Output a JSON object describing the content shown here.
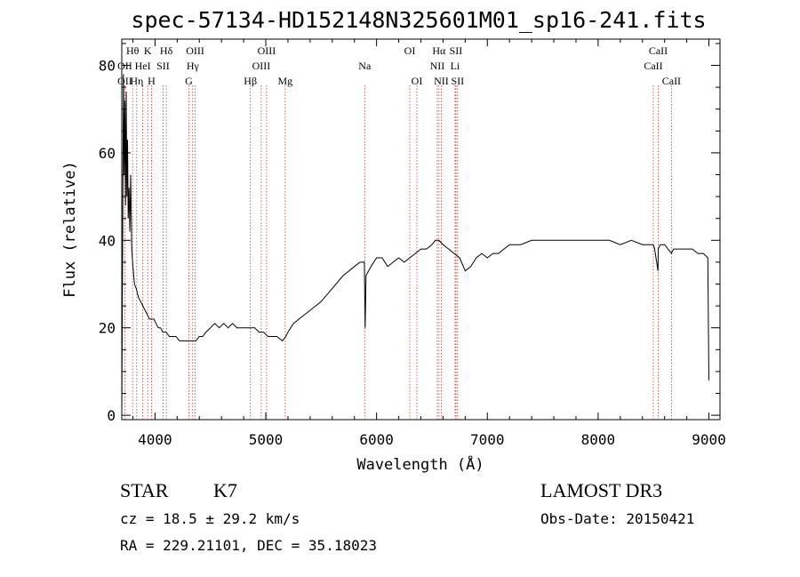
{
  "chart_data": {
    "type": "line",
    "title": "spec-57134-HD152148N325601M01_sp16-241.fits",
    "xlabel": "Wavelength (Å)",
    "ylabel": "Flux (relative)",
    "xlim": [
      3700,
      9100
    ],
    "ylim": [
      -1,
      86
    ],
    "x_ticks": [
      4000,
      5000,
      6000,
      7000,
      8000,
      9000
    ],
    "y_ticks": [
      0,
      20,
      40,
      60,
      80
    ],
    "series": [
      {
        "x": [
          3700,
          3715,
          3722,
          3728,
          3734,
          3740,
          3746,
          3752,
          3758,
          3765,
          3772,
          3780,
          3790,
          3800,
          3815,
          3830,
          3850,
          3870,
          3890,
          3910,
          3930,
          3950,
          3970,
          3990,
          4010,
          4030,
          4050,
          4070,
          4100,
          4130,
          4160,
          4190,
          4220,
          4250,
          4280,
          4300,
          4320,
          4340,
          4370,
          4400,
          4430,
          4460,
          4500,
          4540,
          4580,
          4620,
          4660,
          4700,
          4740,
          4780,
          4820,
          4860,
          4900,
          4940,
          4980,
          5020,
          5060,
          5100,
          5150,
          5180,
          5200,
          5250,
          5300,
          5400,
          5500,
          5600,
          5700,
          5800,
          5850,
          5890,
          5897,
          5905,
          5950,
          6000,
          6050,
          6100,
          6150,
          6200,
          6250,
          6300,
          6350,
          6400,
          6450,
          6500,
          6530,
          6563,
          6600,
          6650,
          6700,
          6750,
          6800,
          6850,
          6900,
          6950,
          7000,
          7050,
          7100,
          7150,
          7200,
          7300,
          7400,
          7500,
          7600,
          7700,
          7800,
          7900,
          8000,
          8100,
          8200,
          8300,
          8400,
          8498,
          8510,
          8540,
          8542,
          8560,
          8600,
          8662,
          8680,
          8700,
          8750,
          8800,
          8850,
          8900,
          8950,
          8990,
          9000
        ],
        "y": [
          0,
          78,
          55,
          72,
          48,
          74,
          50,
          63,
          45,
          52,
          42,
          55,
          38,
          34,
          30,
          29,
          27,
          26,
          25,
          24,
          23,
          22,
          22,
          22,
          21,
          20,
          20,
          19,
          19,
          18,
          18,
          18,
          17,
          17,
          17,
          17,
          17,
          17,
          17,
          18,
          18,
          19,
          20,
          21,
          20,
          21,
          20,
          21,
          20,
          20,
          20,
          20,
          20,
          19,
          19,
          18,
          18,
          18,
          17,
          18,
          19,
          21,
          22,
          24,
          26,
          29,
          32,
          34,
          35,
          35,
          20,
          32,
          34,
          36,
          36,
          34,
          35,
          36,
          35,
          36,
          37,
          38,
          38,
          39,
          40,
          40,
          39,
          38,
          37,
          36,
          33,
          34,
          36,
          37,
          36,
          37,
          37,
          38,
          39,
          39,
          40,
          40,
          40,
          40,
          40,
          40,
          40,
          40,
          39,
          40,
          39,
          39,
          38,
          33,
          38,
          39,
          39,
          37,
          38,
          38,
          38,
          38,
          38,
          37,
          37,
          36,
          8
        ]
      }
    ],
    "line_labels": [
      {
        "text": "Hθ",
        "x": 3798,
        "row": 1
      },
      {
        "text": "K",
        "x": 3934,
        "row": 1
      },
      {
        "text": "Hδ",
        "x": 4102,
        "row": 1
      },
      {
        "text": "OIII",
        "x": 4363,
        "row": 1
      },
      {
        "text": "OIII",
        "x": 5007,
        "row": 1
      },
      {
        "text": "OI",
        "x": 6300,
        "row": 1
      },
      {
        "text": "Hα",
        "x": 6563,
        "row": 1
      },
      {
        "text": "SII",
        "x": 6716,
        "row": 1
      },
      {
        "text": "CaII",
        "x": 8542,
        "row": 1
      },
      {
        "text": "OII",
        "x": 3727,
        "row": 2
      },
      {
        "text": "HeI",
        "x": 3889,
        "row": 2
      },
      {
        "text": "SII",
        "x": 4072,
        "row": 2
      },
      {
        "text": "Hγ",
        "x": 4340,
        "row": 2
      },
      {
        "text": "OIII",
        "x": 4959,
        "row": 2
      },
      {
        "text": "Na",
        "x": 5893,
        "row": 2
      },
      {
        "text": "NII",
        "x": 6548,
        "row": 2
      },
      {
        "text": "Li",
        "x": 6708,
        "row": 2
      },
      {
        "text": "CaII",
        "x": 8498,
        "row": 2
      },
      {
        "text": "OII",
        "x": 3727,
        "row": 3
      },
      {
        "text": "Hη",
        "x": 3835,
        "row": 3
      },
      {
        "text": "H",
        "x": 3969,
        "row": 3
      },
      {
        "text": "G",
        "x": 4305,
        "row": 3
      },
      {
        "text": "Hβ",
        "x": 4861,
        "row": 3
      },
      {
        "text": "Mg",
        "x": 5175,
        "row": 3
      },
      {
        "text": "OI",
        "x": 6364,
        "row": 3
      },
      {
        "text": "NII",
        "x": 6584,
        "row": 3
      },
      {
        "text": "SII",
        "x": 6731,
        "row": 3
      },
      {
        "text": "CaII",
        "x": 8662,
        "row": 3
      }
    ],
    "marker_lines": [
      3727,
      3798,
      3835,
      3889,
      3934,
      3969,
      4072,
      4102,
      4305,
      4340,
      4363,
      4861,
      4959,
      5007,
      5175,
      5893,
      6300,
      6364,
      6548,
      6563,
      6584,
      6708,
      6716,
      6731,
      8498,
      8542,
      8662
    ],
    "colors": {
      "spectrum": "#000000",
      "marker": "#c0392b",
      "axis": "#000000"
    }
  },
  "footer": {
    "object_type": "STAR",
    "subclass": "K7",
    "survey": "LAMOST DR3",
    "cz": "cz = 18.5 ± 29.2 km/s",
    "obs_date": "Obs-Date: 20150421",
    "coords": "RA = 229.21101, DEC =  35.18023"
  }
}
